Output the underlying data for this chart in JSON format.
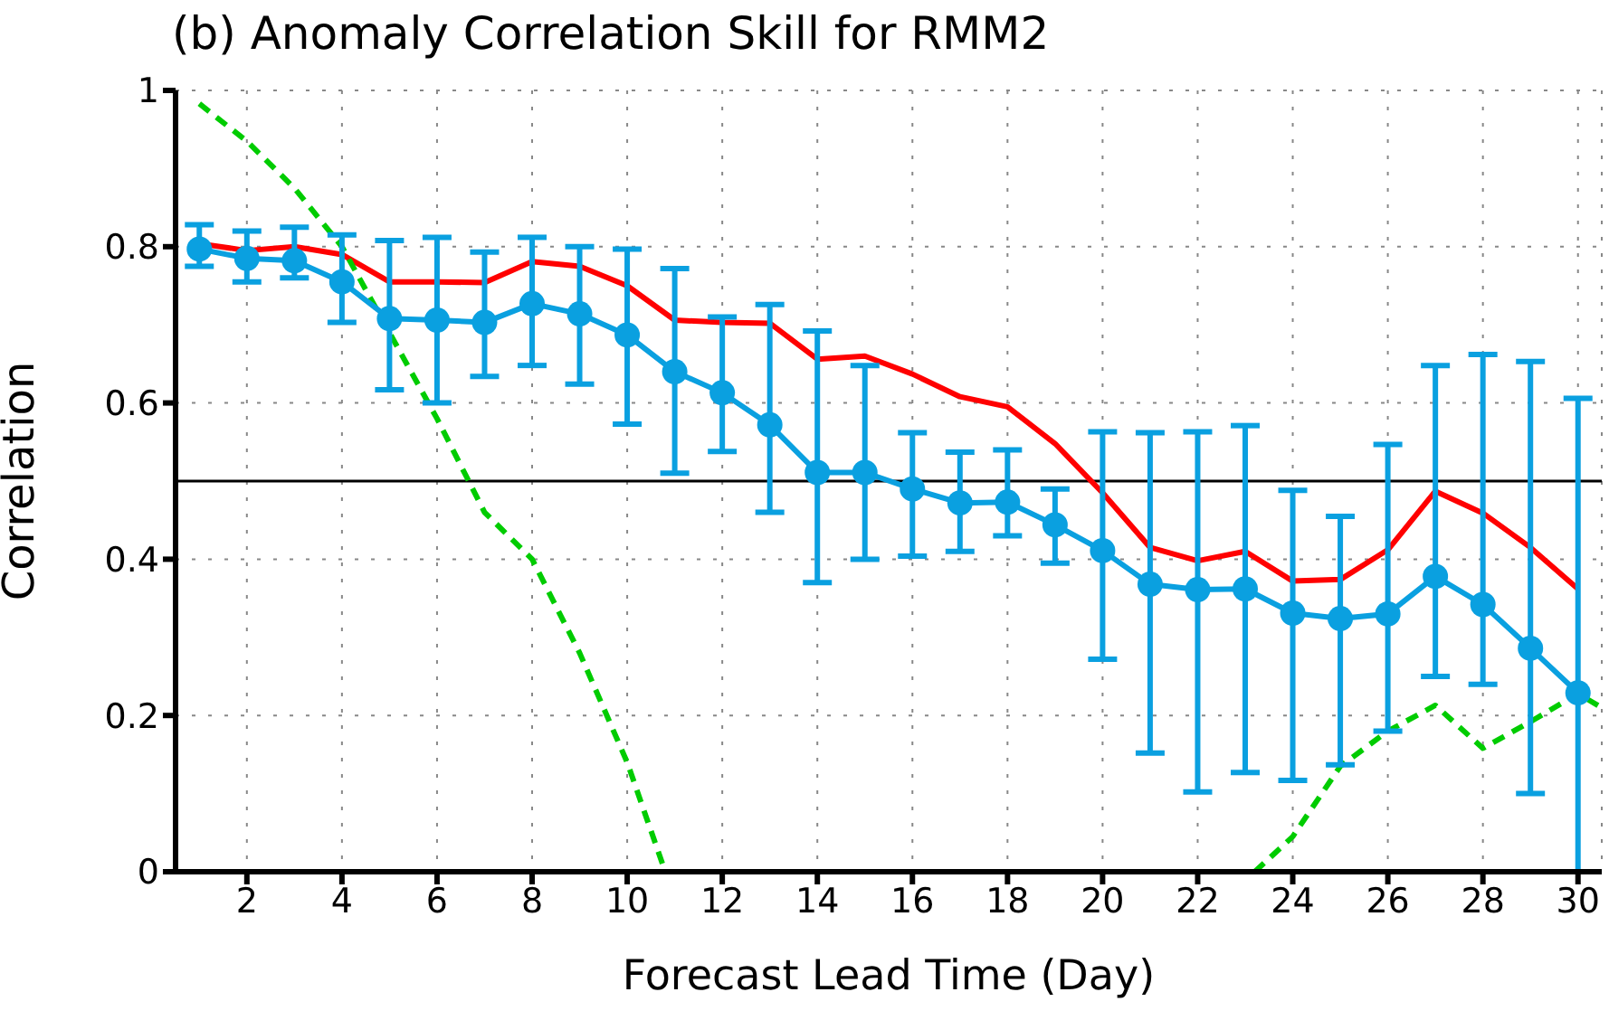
{
  "chart_data": {
    "type": "line",
    "title": "(b) Anomaly Correlation Skill for RMM2",
    "xlabel": "Forecast Lead Time (Day)",
    "ylabel": "Correlation",
    "xlim": [
      0.5,
      30.5
    ],
    "xticks": [
      2,
      4,
      6,
      8,
      10,
      12,
      14,
      16,
      18,
      20,
      22,
      24,
      26,
      28,
      30
    ],
    "ylim": [
      0,
      1
    ],
    "yticks": [
      0,
      0.2,
      0.4,
      0.6,
      0.8,
      1
    ],
    "grid": true,
    "legend": false,
    "ref_lines": [
      {
        "axis": "y",
        "value": 0.5,
        "color": "#000000"
      }
    ],
    "series": [
      {
        "color": "#ff0000",
        "marker": "none",
        "line_style": "solid",
        "x": [
          1,
          2,
          3,
          4,
          5,
          6,
          7,
          8,
          9,
          10,
          11,
          12,
          13,
          14,
          15,
          16,
          17,
          18,
          19,
          20,
          21,
          22,
          23,
          24,
          25,
          26,
          27,
          28,
          29,
          30
        ],
        "values": [
          0.804,
          0.795,
          0.8,
          0.79,
          0.755,
          0.755,
          0.754,
          0.781,
          0.775,
          0.75,
          0.706,
          0.703,
          0.702,
          0.656,
          0.66,
          0.637,
          0.608,
          0.595,
          0.548,
          0.485,
          0.415,
          0.398,
          0.41,
          0.372,
          0.374,
          0.412,
          0.487,
          0.459,
          0.415,
          0.362
        ]
      },
      {
        "color": "#00cc00",
        "marker": "none",
        "line_style": "dashed",
        "x": [
          1,
          2,
          3,
          4,
          5,
          6,
          7,
          8,
          9,
          10,
          10.8,
          17,
          23.2,
          24,
          25,
          26,
          27,
          28,
          29,
          30,
          30.5
        ],
        "values": [
          0.983,
          0.935,
          0.875,
          0.8,
          0.69,
          0.58,
          0.46,
          0.4,
          0.28,
          0.14,
          0,
          null,
          0,
          0.045,
          0.135,
          0.18,
          0.213,
          0.158,
          0.192,
          0.228,
          0.21
        ]
      },
      {
        "color": "#0aa0e0",
        "marker": "circle",
        "line_style": "solid",
        "x": [
          1,
          2,
          3,
          4,
          5,
          6,
          7,
          8,
          9,
          10,
          11,
          12,
          13,
          14,
          15,
          16,
          17,
          18,
          19,
          20,
          21,
          22,
          23,
          24,
          25,
          26,
          27,
          28,
          29,
          30
        ],
        "values": [
          0.797,
          0.785,
          0.782,
          0.755,
          0.708,
          0.706,
          0.703,
          0.727,
          0.714,
          0.687,
          0.64,
          0.613,
          0.572,
          0.511,
          0.511,
          0.49,
          0.472,
          0.473,
          0.444,
          0.411,
          0.368,
          0.361,
          0.362,
          0.331,
          0.324,
          0.33,
          0.378,
          0.342,
          0.286,
          0.229
        ],
        "errors": [
          [
            0.775,
            0.828
          ],
          [
            0.755,
            0.82
          ],
          [
            0.76,
            0.825
          ],
          [
            0.703,
            0.815
          ],
          [
            0.617,
            0.808
          ],
          [
            0.6,
            0.812
          ],
          [
            0.634,
            0.793
          ],
          [
            0.648,
            0.812
          ],
          [
            0.624,
            0.8
          ],
          [
            0.573,
            0.797
          ],
          [
            0.51,
            0.772
          ],
          [
            0.538,
            0.71
          ],
          [
            0.46,
            0.726
          ],
          [
            0.37,
            0.692
          ],
          [
            0.4,
            0.648
          ],
          [
            0.404,
            0.562
          ],
          [
            0.41,
            0.537
          ],
          [
            0.43,
            0.54
          ],
          [
            0.395,
            0.49
          ],
          [
            0.272,
            0.563
          ],
          [
            0.152,
            0.562
          ],
          [
            0.102,
            0.563
          ],
          [
            0.127,
            0.571
          ],
          [
            0.117,
            0.488
          ],
          [
            0.137,
            0.455
          ],
          [
            0.18,
            0.547
          ],
          [
            0.25,
            0.648
          ],
          [
            0.24,
            0.662
          ],
          [
            0.1,
            0.653
          ],
          [
            0,
            0.606
          ]
        ]
      }
    ]
  }
}
